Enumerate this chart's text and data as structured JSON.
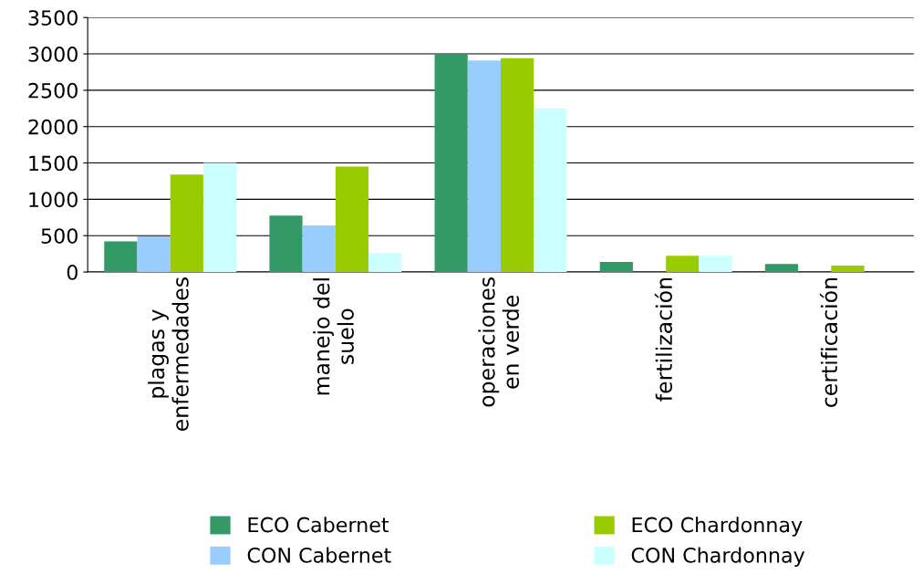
{
  "chart_data": {
    "type": "bar",
    "categories": [
      "plagas y\nenfermedades",
      "manejo del\nsuelo",
      "operaciones\nen verde",
      "fertilización",
      "certificación"
    ],
    "series": [
      {
        "name": "ECO Cabernet",
        "color": "#339966",
        "values": [
          420,
          775,
          3000,
          140,
          110
        ]
      },
      {
        "name": "CON Cabernet",
        "color": "#99ccff",
        "values": [
          490,
          640,
          2910,
          0,
          0
        ]
      },
      {
        "name": "ECO Chardonnay",
        "color": "#99cc00",
        "values": [
          1340,
          1450,
          2940,
          225,
          90
        ]
      },
      {
        "name": "CON Chardonnay",
        "color": "#ccffff",
        "values": [
          1500,
          260,
          2250,
          225,
          0
        ]
      }
    ],
    "ylim": [
      0,
      3500
    ],
    "yticks": [
      0,
      500,
      1000,
      1500,
      2000,
      2500,
      3000,
      3500
    ],
    "grid": "y",
    "legend": "bottom"
  }
}
